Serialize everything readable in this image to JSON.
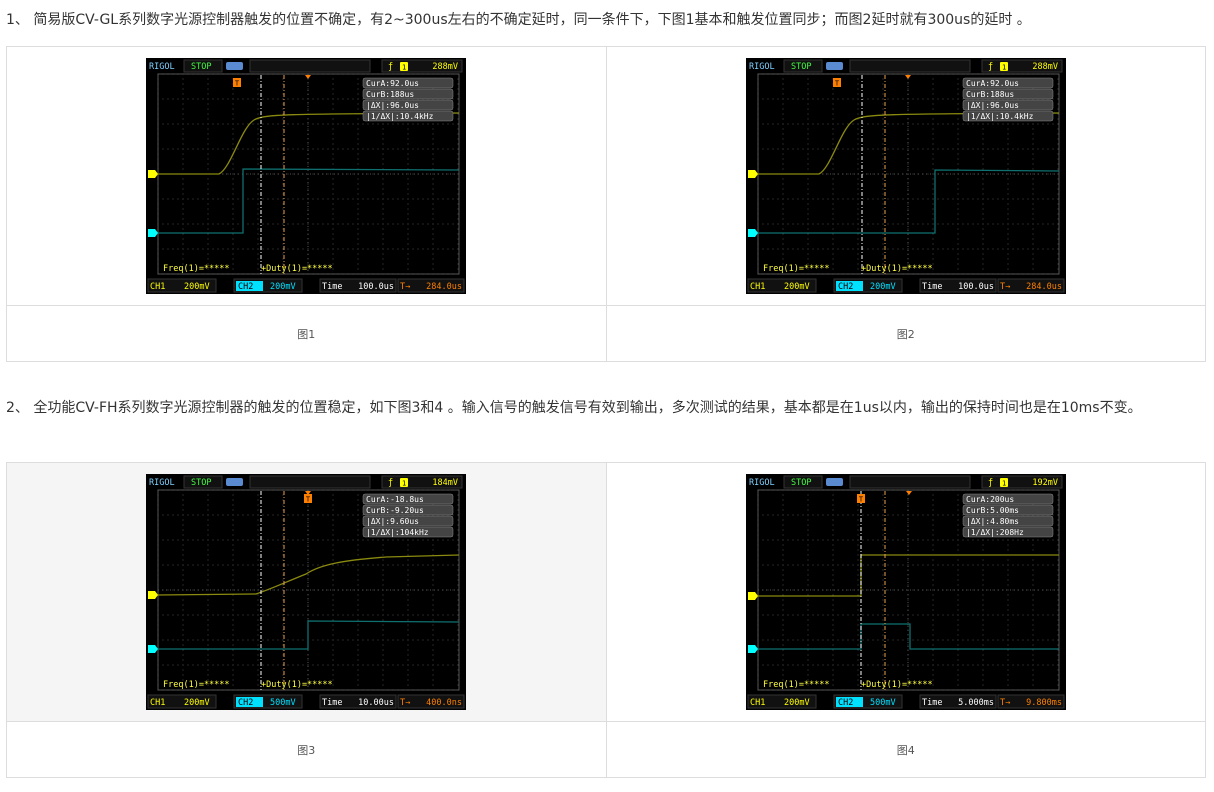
{
  "section1": {
    "text": "1、 简易版CV-GL系列数字光源控制器触发的位置不确定，有2~300us左右的不确定延时，同一条件下，下图1基本和触发位置同步；而图2延时就有300us的延时 。",
    "figures": [
      {
        "caption": "图1",
        "brand": "RIGOL",
        "status": "STOP",
        "trig_level": "288mV",
        "cur_a": "CurA:92.0us",
        "cur_b": "CurB:188us",
        "dx": "|ΔX|:96.0us",
        "inv_dx": "|1/ΔX|:10.4kHz",
        "freq": "Freq(1)=*****",
        "duty": "+Duty(1)=*****",
        "ch1": "CH1",
        "ch1_scale": "200mV",
        "ch2": "CH2",
        "ch2_scale": "200mV",
        "time_label": "Time",
        "time": "100.0us",
        "trig_offset": "284.0us"
      },
      {
        "caption": "图2",
        "brand": "RIGOL",
        "status": "STOP",
        "trig_level": "288mV",
        "cur_a": "CurA:92.0us",
        "cur_b": "CurB:188us",
        "dx": "|ΔX|:96.0us",
        "inv_dx": "|1/ΔX|:10.4kHz",
        "freq": "Freq(1)=*****",
        "duty": "+Duty(1)=*****",
        "ch1": "CH1",
        "ch1_scale": "200mV",
        "ch2": "CH2",
        "ch2_scale": "200mV",
        "time_label": "Time",
        "time": "100.0us",
        "trig_offset": "284.0us"
      }
    ]
  },
  "section2": {
    "text": "2、 全功能CV-FH系列数字光源控制器的触发的位置稳定，如下图3和4 。输入信号的触发信号有效到输出，多次测试的结果，基本都是在1us以内，输出的保持时间也是在10ms不变。",
    "figures": [
      {
        "caption": "图3",
        "brand": "RIGOL",
        "status": "STOP",
        "trig_level": "184mV",
        "cur_a": "CurA:-18.8us",
        "cur_b": "CurB:-9.20us",
        "dx": "|ΔX|:9.60us",
        "inv_dx": "|1/ΔX|:104kHz",
        "freq": "Freq(1)=*****",
        "duty": "+Duty(1)=*****",
        "ch1": "CH1",
        "ch1_scale": "200mV",
        "ch2": "CH2",
        "ch2_scale": "500mV",
        "time_label": "Time",
        "time": "10.00us",
        "trig_offset": "400.0ns"
      },
      {
        "caption": "图4",
        "brand": "RIGOL",
        "status": "STOP",
        "trig_level": "192mV",
        "cur_a": "CurA:200us",
        "cur_b": "CurB:5.00ms",
        "dx": "|ΔX|:4.80ms",
        "inv_dx": "|1/ΔX|:208Hz",
        "freq": "Freq(1)=*****",
        "duty": "+Duty(1)=*****",
        "ch1": "CH1",
        "ch1_scale": "200mV",
        "ch2": "CH2",
        "ch2_scale": "500mV",
        "time_label": "Time",
        "time": "5.000ms",
        "trig_offset": "9.800ms"
      }
    ]
  },
  "colors": {
    "ch1": "#8a8a10",
    "ch2": "#0f7070",
    "cursor_b": "#e8a050",
    "trigger": "#ff8000",
    "ch1_label": "#ffff00",
    "ch2_label": "#00ffff"
  }
}
